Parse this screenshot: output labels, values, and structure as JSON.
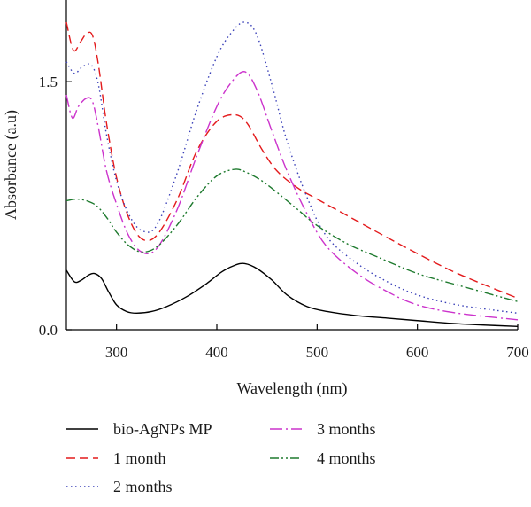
{
  "chart_data": {
    "type": "line",
    "xlabel": "Wavelength (nm)",
    "ylabel": "Absorbance (a.u)",
    "xlim": [
      250,
      700
    ],
    "ylim": [
      0,
      1.86
    ],
    "xticks": [
      300,
      400,
      500,
      600,
      700
    ],
    "yticks": [
      0.0,
      1.5
    ],
    "ytick_labels": [
      "0.0",
      "1.5"
    ],
    "grid": false,
    "legend_position": "bottom",
    "series": [
      {
        "name": "bio-AgNPs MP",
        "color": "#000000",
        "dash": "solid",
        "x": [
          250,
          258,
          265,
          272,
          278,
          285,
          292,
          300,
          310,
          320,
          335,
          350,
          370,
          390,
          405,
          418,
          428,
          440,
          455,
          470,
          490,
          510,
          540,
          570,
          600,
          630,
          660,
          700
        ],
        "y": [
          0.36,
          0.29,
          0.3,
          0.33,
          0.34,
          0.31,
          0.23,
          0.15,
          0.11,
          0.1,
          0.11,
          0.14,
          0.2,
          0.28,
          0.35,
          0.39,
          0.4,
          0.37,
          0.3,
          0.21,
          0.14,
          0.11,
          0.085,
          0.07,
          0.055,
          0.04,
          0.03,
          0.02
        ]
      },
      {
        "name": "1 month",
        "color": "#e31a1c",
        "dash": "dashed",
        "x": [
          250,
          257,
          264,
          270,
          276,
          282,
          290,
          300,
          312,
          325,
          340,
          360,
          380,
          400,
          418,
          430,
          445,
          460,
          480,
          500,
          530,
          560,
          600,
          640,
          700
        ],
        "y": [
          1.86,
          1.69,
          1.74,
          1.79,
          1.78,
          1.6,
          1.25,
          0.92,
          0.68,
          0.55,
          0.57,
          0.78,
          1.08,
          1.26,
          1.3,
          1.25,
          1.09,
          0.96,
          0.86,
          0.79,
          0.69,
          0.59,
          0.46,
          0.34,
          0.19
        ]
      },
      {
        "name": "2 months",
        "color": "#3a40b8",
        "dash": "dotted",
        "x": [
          250,
          258,
          266,
          275,
          282,
          290,
          300,
          312,
          325,
          340,
          360,
          380,
          400,
          415,
          428,
          440,
          455,
          470,
          490,
          510,
          540,
          570,
          600,
          640,
          700
        ],
        "y": [
          1.62,
          1.55,
          1.59,
          1.6,
          1.48,
          1.18,
          0.9,
          0.7,
          0.6,
          0.63,
          0.94,
          1.33,
          1.65,
          1.8,
          1.86,
          1.78,
          1.48,
          1.14,
          0.8,
          0.56,
          0.4,
          0.29,
          0.21,
          0.15,
          0.1
        ]
      },
      {
        "name": "3 months",
        "color": "#cc33cc",
        "dash": "dashdot",
        "x": [
          250,
          256,
          262,
          270,
          276,
          282,
          290,
          300,
          312,
          325,
          340,
          360,
          380,
          400,
          415,
          428,
          440,
          455,
          470,
          490,
          510,
          540,
          570,
          600,
          640,
          700
        ],
        "y": [
          1.42,
          1.28,
          1.35,
          1.4,
          1.38,
          1.22,
          0.96,
          0.76,
          0.57,
          0.47,
          0.49,
          0.72,
          1.05,
          1.35,
          1.5,
          1.56,
          1.45,
          1.2,
          0.96,
          0.7,
          0.5,
          0.34,
          0.23,
          0.15,
          0.1,
          0.06
        ]
      },
      {
        "name": "4 months",
        "color": "#1e7a2e",
        "dash": "dashdotdot",
        "x": [
          250,
          260,
          270,
          280,
          290,
          300,
          312,
          325,
          340,
          360,
          380,
          400,
          418,
          430,
          445,
          460,
          480,
          500,
          530,
          560,
          600,
          640,
          700
        ],
        "y": [
          0.78,
          0.79,
          0.78,
          0.75,
          0.68,
          0.59,
          0.51,
          0.47,
          0.5,
          0.63,
          0.8,
          0.93,
          0.97,
          0.95,
          0.9,
          0.83,
          0.73,
          0.63,
          0.52,
          0.44,
          0.34,
          0.27,
          0.17
        ]
      }
    ]
  }
}
